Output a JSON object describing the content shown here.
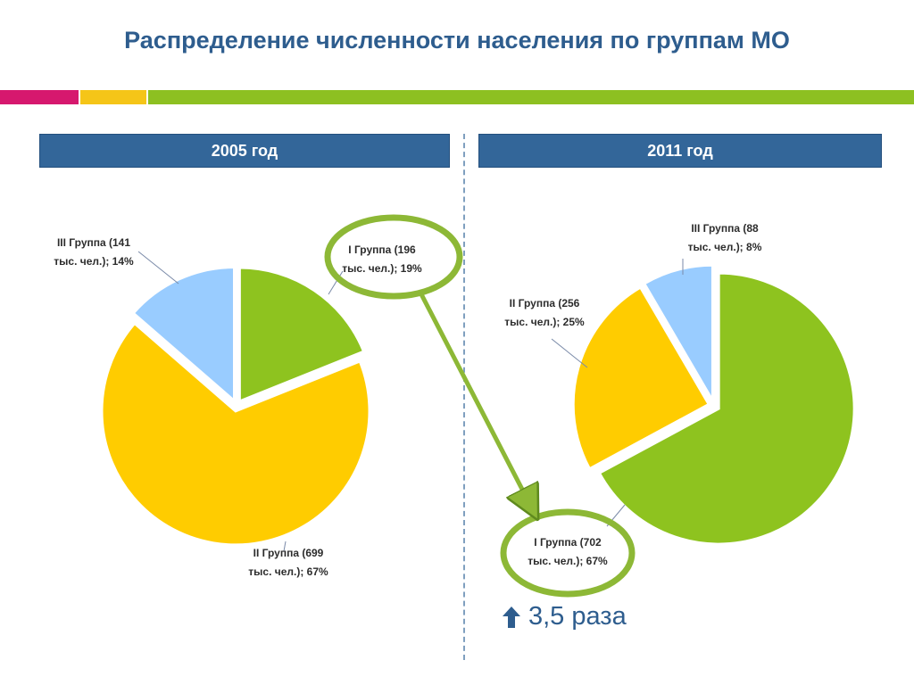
{
  "header": {
    "title": "Распределение численности населения по группам МО"
  },
  "colors": {
    "stripe": [
      "#D6186E",
      "#F5C518",
      "#8DC021"
    ],
    "group1": "#8EC31F",
    "group2": "#FFCC00",
    "group3": "#99CCFF",
    "header_bg": "#336699",
    "highlight": "#8DB836"
  },
  "panels": [
    {
      "label": "2005 год"
    },
    {
      "label": "2011 год"
    }
  ],
  "chart_data": [
    {
      "type": "pie",
      "title": "2005 год",
      "categories": [
        "I Группа",
        "II Группа",
        "III Группа"
      ],
      "values": [
        196,
        699,
        141
      ],
      "percents": [
        19,
        67,
        14
      ],
      "labels": [
        [
          "I Группа (196",
          "тыс. чел.); 19%"
        ],
        [
          "II Группа (699",
          "тыс. чел.); 67%"
        ],
        [
          "III Группа (141",
          "тыс. чел.); 14%"
        ]
      ]
    },
    {
      "type": "pie",
      "title": "2011 год",
      "categories": [
        "I Группа",
        "II Группа",
        "III Группа"
      ],
      "values": [
        702,
        256,
        88
      ],
      "percents": [
        67,
        25,
        8
      ],
      "labels": [
        [
          "I Группа (702",
          "тыс. чел.); 67%"
        ],
        [
          "II Группа (256",
          "тыс. чел.); 25%"
        ],
        [
          "III Группа (88",
          "тыс. чел.); 8%"
        ]
      ]
    }
  ],
  "note": {
    "text": "3,5 раза",
    "icon": "arrow-up-icon"
  }
}
